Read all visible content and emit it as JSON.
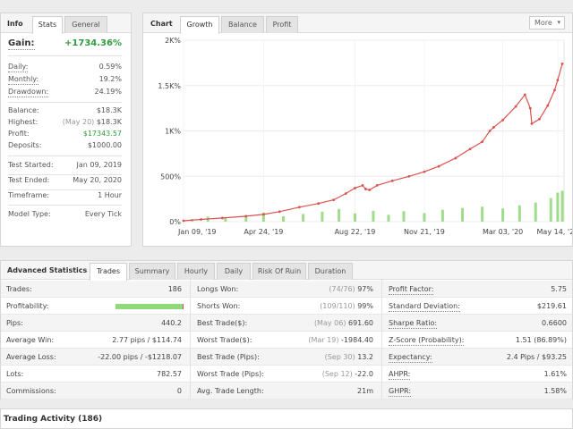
{
  "info": {
    "title": "Info",
    "tabs": [
      "Stats",
      "General"
    ],
    "gain_label": "Gain:",
    "gain_value": "+1734.36%",
    "rows": [
      {
        "label": "Daily:",
        "value": "0.59%"
      },
      {
        "label": "Monthly:",
        "value": "19.2%"
      },
      {
        "label": "Drawdown:",
        "value": "24.19%"
      },
      {
        "label": "Balance:",
        "value": "$18.3K"
      },
      {
        "label": "Highest:",
        "sub": "(May 20)",
        "value": "$18.3K"
      },
      {
        "label": "Profit:",
        "value": "$17343.57"
      },
      {
        "label": "Deposits:",
        "value": "$1000.00"
      },
      {
        "label": "Test Started:",
        "value": "Jan 09, 2019"
      },
      {
        "label": "Test Ended:",
        "value": "May 20, 2020"
      },
      {
        "label": "Timeframe:",
        "value": "1 Hour"
      },
      {
        "label": "Model Type:",
        "value": "Every Tick"
      }
    ]
  },
  "chart": {
    "title": "Chart",
    "tabs": [
      "Growth",
      "Balance",
      "Profit"
    ],
    "more_label": "More"
  },
  "chart_data": {
    "type": "line",
    "title": "",
    "xlabel": "",
    "ylabel": "",
    "x_tick_labels": [
      "Jan 09, '19",
      "Apr 24, '19",
      "Aug 22, '19",
      "Nov 21, '19",
      "Mar 03, '20",
      "May 14, '20"
    ],
    "y_tick_labels": [
      "0%",
      "500%",
      "1K%",
      "1.5K%",
      "2K%"
    ],
    "ylim": [
      0,
      2000
    ],
    "grid": true,
    "series": [
      {
        "color": "#d9534f",
        "x": [
          "2019-01-09",
          "2019-02-01",
          "2019-03-01",
          "2019-04-01",
          "2019-04-24",
          "2019-05-15",
          "2019-06-10",
          "2019-07-05",
          "2019-07-25",
          "2019-08-10",
          "2019-08-22",
          "2019-09-01",
          "2019-09-05",
          "2019-09-10",
          "2019-09-20",
          "2019-10-10",
          "2019-11-01",
          "2019-11-21",
          "2019-12-10",
          "2020-01-01",
          "2020-01-20",
          "2020-02-05",
          "2020-02-15",
          "2020-02-20",
          "2020-03-03",
          "2020-03-20",
          "2020-04-01",
          "2020-04-08",
          "2020-04-10",
          "2020-04-20",
          "2020-05-01",
          "2020-05-10",
          "2020-05-14",
          "2020-05-20"
        ],
        "values": [
          10,
          25,
          40,
          60,
          80,
          110,
          160,
          200,
          240,
          310,
          370,
          400,
          360,
          350,
          400,
          450,
          500,
          550,
          610,
          700,
          800,
          880,
          1000,
          1040,
          1120,
          1270,
          1400,
          1250,
          1080,
          1130,
          1280,
          1450,
          1560,
          1740
        ]
      },
      {
        "name": "",
        "type": "bar",
        "color": "#9fdc8c",
        "x": [
          "2019-01-20",
          "2019-02-10",
          "2019-03-05",
          "2019-04-01",
          "2019-04-24",
          "2019-05-20",
          "2019-06-15",
          "2019-07-10",
          "2019-08-01",
          "2019-08-22",
          "2019-09-15",
          "2019-10-05",
          "2019-10-25",
          "2019-11-21",
          "2019-12-15",
          "2020-01-10",
          "2020-02-05",
          "2020-03-03",
          "2020-03-25",
          "2020-04-15",
          "2020-05-05",
          "2020-05-14",
          "2020-05-20"
        ],
        "values": [
          30,
          55,
          45,
          70,
          100,
          60,
          85,
          110,
          140,
          90,
          120,
          75,
          115,
          95,
          130,
          150,
          165,
          145,
          180,
          210,
          260,
          320,
          340
        ]
      }
    ]
  },
  "advanced": {
    "title": "Advanced Statistics",
    "tabs": [
      "Trades",
      "Summary",
      "Hourly",
      "Daily",
      "Risk Of Ruin",
      "Duration"
    ],
    "col1": [
      {
        "label": "Trades:",
        "value": "186"
      },
      {
        "label": "Profitability:",
        "value": "",
        "bar": true,
        "profit_fraction": 0.99
      },
      {
        "label": "Pips:",
        "value": "440.2"
      },
      {
        "label": "Average Win:",
        "value": "2.77 pips / $114.74"
      },
      {
        "label": "Average Loss:",
        "value": "-22.00 pips / -$1218.07"
      },
      {
        "label": "Lots:",
        "value": "782.57"
      },
      {
        "label": "Commissions:",
        "value": "0"
      }
    ],
    "col2": [
      {
        "label": "Longs Won:",
        "sub": "(74/76)",
        "value": "97%"
      },
      {
        "label": "Shorts Won:",
        "sub": "(109/110)",
        "value": "99%"
      },
      {
        "label": "Best Trade($):",
        "sub": "(May 06)",
        "value": "691.60"
      },
      {
        "label": "Worst Trade($):",
        "sub": "(Mar 19)",
        "value": "-1984.40"
      },
      {
        "label": "Best Trade (Pips):",
        "sub": "(Sep 30)",
        "value": "13.2"
      },
      {
        "label": "Worst Trade (Pips):",
        "sub": "(Sep 12)",
        "value": "-22.0"
      },
      {
        "label": "Avg. Trade Length:",
        "sub": "",
        "value": "21m"
      }
    ],
    "col3": [
      {
        "label": "Profit Factor:",
        "value": "5.75"
      },
      {
        "label": "Standard Deviation:",
        "value": "$219.61"
      },
      {
        "label": "Sharpe Ratio:",
        "value": "0.6600"
      },
      {
        "label": "Z-Score (Probability):",
        "value": "1.51 (86.89%)"
      },
      {
        "label": "Expectancy:",
        "value": "2.4 Pips / $93.25"
      },
      {
        "label": "AHPR:",
        "value": "1.61%"
      },
      {
        "label": "GHPR:",
        "value": "1.58%"
      }
    ]
  },
  "trading_activity": {
    "title": "Trading Activity (186)"
  }
}
